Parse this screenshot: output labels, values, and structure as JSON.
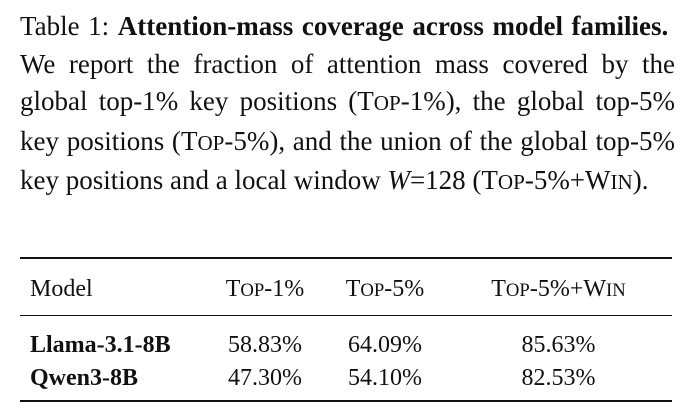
{
  "caption": {
    "label": "Table 1:",
    "title": "Attention-mass coverage across model families.",
    "text_1": "We report the fraction of attention mass covered by the global top-1",
    "text_2": "key positions (",
    "text_3": "), the global top-5",
    "text_4": "key positions (",
    "text_5": "), and the union of the global top-5",
    "text_6": "key positions and a local window",
    "text_7": "=128 (",
    "text_8": ")."
  },
  "terms": {
    "pct": "%",
    "top1_T": "T",
    "top1_rest": "OP",
    "top1_suffix": "-1%",
    "top5_T": "T",
    "top5_rest": "OP",
    "top5_suffix": "-5%",
    "win_plus": "-5%+W",
    "win_rest": "IN",
    "W": "W"
  },
  "table": {
    "headers": {
      "model": "Model",
      "top1_T": "T",
      "top1_rest": "OP",
      "top1_suffix": "-1%",
      "top5_T": "T",
      "top5_rest": "OP",
      "top5_suffix": "-5%",
      "win_T": "T",
      "win_rest": "OP",
      "win_mid": "-5%+W",
      "win_end": "IN"
    },
    "rows": [
      {
        "model": "Llama-3.1-8B",
        "top1": "58.83%",
        "top5": "64.09%",
        "win": "85.63%"
      },
      {
        "model": "Qwen3-8B",
        "top1": "47.30%",
        "top5": "54.10%",
        "win": "82.53%"
      }
    ]
  }
}
